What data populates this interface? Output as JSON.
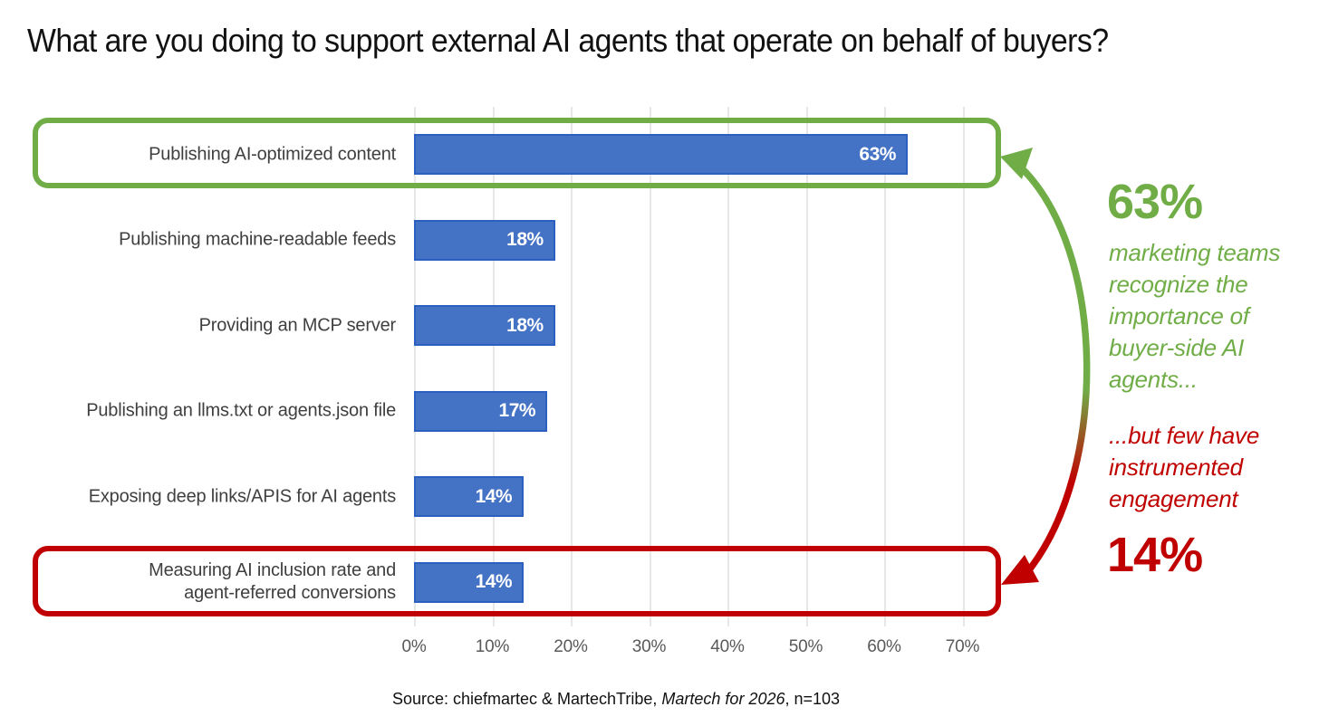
{
  "source": {
    "prefix": "Source: chiefmartec & MartechTribe, ",
    "italic_part": "Martech for 2026",
    "suffix": ", n=103"
  },
  "colors": {
    "bar_fill": "#4472C4",
    "bar_border": "#2B5FC0",
    "highlight_green": "#70AD47",
    "highlight_red": "#C00000",
    "gridline": "#E7E7E7",
    "category_text": "#3F3F3F",
    "tick_text": "#595959",
    "value_text": "#FFFFFF"
  },
  "chart_data": {
    "type": "bar",
    "orientation": "horizontal",
    "title": "What are you doing to support external AI agents that operate on behalf of buyers?",
    "categories": [
      "Publishing AI-optimized content",
      "Publishing machine-readable feeds",
      "Providing an MCP server",
      "Publishing an llms.txt or agents.json file",
      "Exposing deep links/APIS for AI agents",
      "Measuring AI inclusion rate and\nagent-referred conversions"
    ],
    "values": [
      63,
      18,
      18,
      17,
      14,
      14
    ],
    "value_labels": [
      "63%",
      "18%",
      "18%",
      "17%",
      "14%",
      "14%"
    ],
    "tick_labels": [
      "0%",
      "10%",
      "20%",
      "30%",
      "40%",
      "50%",
      "60%",
      "70%"
    ],
    "tick_values": [
      0,
      10,
      20,
      30,
      40,
      50,
      60,
      70
    ],
    "xlim": [
      0,
      70
    ],
    "grid": true,
    "legend": false,
    "highlights": {
      "green_row": 0,
      "red_row": 5
    }
  },
  "annotations": {
    "green_stat": "63%",
    "green_note": "marketing teams\nrecognize the\nimportance of\nbuyer-side AI\nagents...",
    "red_note": "...but few have\ninstrumented\nengagement",
    "red_stat": "14%"
  }
}
